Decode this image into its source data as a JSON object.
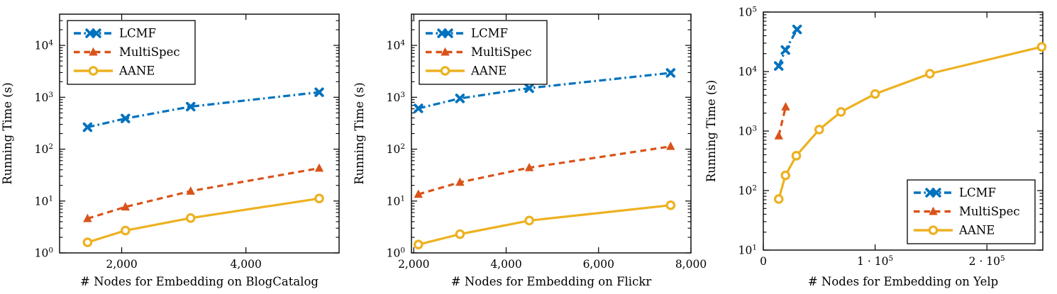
{
  "figure": {
    "background": "#ffffff",
    "frame_color": "#000000"
  },
  "chart_data": [
    {
      "type": "line",
      "name": "blogcatalog-runtime",
      "title": "",
      "xlabel": "# Nodes for Embedding on BlogCatalog",
      "ylabel": "Running Time (s)",
      "xscale": "linear",
      "yscale": "log",
      "grid": false,
      "xlim": [
        1000,
        5500
      ],
      "ylim": [
        1,
        40000
      ],
      "xticks": [
        {
          "v": 2000,
          "base": "2,000"
        },
        {
          "v": 4000,
          "base": "4,000"
        }
      ],
      "yticks": [
        {
          "v": 1,
          "base": "10",
          "sup": "0"
        },
        {
          "v": 10,
          "base": "10",
          "sup": "1"
        },
        {
          "v": 100,
          "base": "10",
          "sup": "2"
        },
        {
          "v": 1000,
          "base": "10",
          "sup": "3"
        },
        {
          "v": 10000,
          "base": "10",
          "sup": "4"
        }
      ],
      "legend": {
        "position": "top-left",
        "entries": [
          "LCMF",
          "MultiSpec",
          "AANE"
        ]
      },
      "series": [
        {
          "name": "LCMF",
          "color": "#0072BD",
          "line": "dashdot",
          "marker": "x",
          "x": [
            1450,
            2060,
            3110,
            5180
          ],
          "y": [
            265,
            390,
            660,
            1250
          ]
        },
        {
          "name": "MultiSpec",
          "color": "#D95319",
          "line": "dashed",
          "marker": "triangle",
          "x": [
            1450,
            2060,
            3110,
            5180
          ],
          "y": [
            4.6,
            7.7,
            15.5,
            43
          ]
        },
        {
          "name": "AANE",
          "color": "#EDB120",
          "line": "solid",
          "marker": "circle",
          "x": [
            1450,
            2060,
            3110,
            5180
          ],
          "y": [
            1.6,
            2.7,
            4.7,
            11.2
          ]
        }
      ]
    },
    {
      "type": "line",
      "name": "flickr-runtime",
      "title": "",
      "xlabel": "# Nodes for Embedding on Flickr",
      "ylabel": "Running Time (s)",
      "xscale": "linear",
      "yscale": "log",
      "grid": false,
      "xlim": [
        1950,
        8000
      ],
      "ylim": [
        1,
        40000
      ],
      "xticks": [
        {
          "v": 2000,
          "base": "2,000"
        },
        {
          "v": 4000,
          "base": "4,000"
        },
        {
          "v": 6000,
          "base": "6,000"
        },
        {
          "v": 8000,
          "base": "8,000"
        }
      ],
      "yticks": [
        {
          "v": 1,
          "base": "10",
          "sup": "0"
        },
        {
          "v": 10,
          "base": "10",
          "sup": "1"
        },
        {
          "v": 100,
          "base": "10",
          "sup": "2"
        },
        {
          "v": 1000,
          "base": "10",
          "sup": "3"
        },
        {
          "v": 10000,
          "base": "10",
          "sup": "4"
        }
      ],
      "legend": {
        "position": "top-left",
        "entries": [
          "LCMF",
          "MultiSpec",
          "AANE"
        ]
      },
      "series": [
        {
          "name": "LCMF",
          "color": "#0072BD",
          "line": "dashdot",
          "marker": "x",
          "x": [
            2100,
            3000,
            4500,
            7560
          ],
          "y": [
            610,
            950,
            1500,
            2950
          ]
        },
        {
          "name": "MultiSpec",
          "color": "#D95319",
          "line": "dashed",
          "marker": "triangle",
          "x": [
            2100,
            3000,
            4500,
            7560
          ],
          "y": [
            13.5,
            23,
            44,
            113
          ]
        },
        {
          "name": "AANE",
          "color": "#EDB120",
          "line": "solid",
          "marker": "circle",
          "x": [
            2100,
            3000,
            4500,
            7560
          ],
          "y": [
            1.45,
            2.3,
            4.2,
            8.3
          ]
        }
      ]
    },
    {
      "type": "line",
      "name": "yelp-runtime",
      "title": "",
      "xlabel": "# Nodes for Embedding on Yelp",
      "ylabel": "Running Time (s)",
      "xscale": "linear",
      "yscale": "log",
      "grid": false,
      "xlim": [
        0,
        250000
      ],
      "ylim": [
        10,
        100000
      ],
      "xticks": [
        {
          "v": 0,
          "base": "0"
        },
        {
          "v": 100000,
          "base": "1 · 10",
          "sup": "5"
        },
        {
          "v": 200000,
          "base": "2 · 10",
          "sup": "5"
        }
      ],
      "yticks": [
        {
          "v": 10,
          "base": "10",
          "sup": "1"
        },
        {
          "v": 100,
          "base": "10",
          "sup": "2"
        },
        {
          "v": 1000,
          "base": "10",
          "sup": "3"
        },
        {
          "v": 10000,
          "base": "10",
          "sup": "4"
        },
        {
          "v": 100000,
          "base": "10",
          "sup": "5"
        }
      ],
      "legend": {
        "position": "bottom-right",
        "entries": [
          "LCMF",
          "MultiSpec",
          "AANE"
        ]
      },
      "series": [
        {
          "name": "LCMF",
          "color": "#0072BD",
          "line": "dashdot",
          "marker": "x",
          "x": [
            13800,
            19800,
            30200
          ],
          "y": [
            12400,
            23000,
            51000
          ]
        },
        {
          "name": "MultiSpec",
          "color": "#D95319",
          "line": "dashed",
          "marker": "triangle",
          "x": [
            13800,
            20000
          ],
          "y": [
            830,
            2550
          ]
        },
        {
          "name": "AANE",
          "color": "#EDB120",
          "line": "solid",
          "marker": "circle",
          "x": [
            13800,
            19800,
            29500,
            50000,
            69500,
            100000,
            149000,
            249000
          ],
          "y": [
            72,
            180,
            385,
            1060,
            2100,
            4200,
            9200,
            26000
          ]
        }
      ]
    }
  ]
}
